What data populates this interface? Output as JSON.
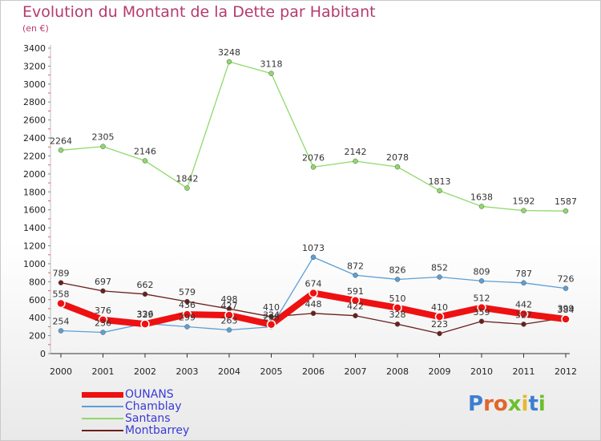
{
  "title": "Evolution du Montant de la Dette par Habitant",
  "subtitle": "(en €)",
  "brand": {
    "chars": [
      "P",
      "r",
      "o",
      "x",
      "i",
      "t",
      "i"
    ],
    "colors": [
      "#3b7fd1",
      "#e0652b",
      "#e0652b",
      "#6cbf2e",
      "#e6b82e",
      "#3b7fd1",
      "#6cbf2e"
    ]
  },
  "chart_data": {
    "type": "line",
    "title": "Evolution du Montant de la Dette par Habitant",
    "subtitle": "(en €)",
    "xlabel": "",
    "ylabel": "",
    "x": [
      "2000",
      "2001",
      "2002",
      "2003",
      "2004",
      "2005",
      "2006",
      "2007",
      "2008",
      "2009",
      "2010",
      "2011",
      "2012"
    ],
    "ylim": [
      0,
      3400
    ],
    "yticks": [
      0,
      200,
      400,
      600,
      800,
      1000,
      1200,
      1400,
      1600,
      1800,
      2000,
      2200,
      2400,
      2600,
      2800,
      3000,
      3200,
      3400
    ],
    "grid": false,
    "legend": "bottom-left",
    "series": [
      {
        "name": "OUNANS",
        "color": "#ee1111",
        "values": [
          558,
          376,
          329,
          436,
          427,
          324,
          674,
          591,
          510,
          410,
          512,
          442,
          384
        ]
      },
      {
        "name": "Chamblay",
        "color": "#5b9fd6",
        "values": [
          254,
          236,
          336,
          299,
          263,
          298,
          1073,
          872,
          826,
          852,
          809,
          787,
          726
        ]
      },
      {
        "name": "Santans",
        "color": "#8fd96a",
        "values": [
          2264,
          2305,
          2146,
          1842,
          3248,
          3118,
          2076,
          2142,
          2078,
          1813,
          1638,
          1592,
          1587
        ]
      },
      {
        "name": "Montbarrey",
        "color": "#6b1f1f",
        "values": [
          789,
          697,
          662,
          579,
          498,
          410,
          448,
          422,
          328,
          223,
          359,
          327,
          399
        ]
      }
    ]
  }
}
